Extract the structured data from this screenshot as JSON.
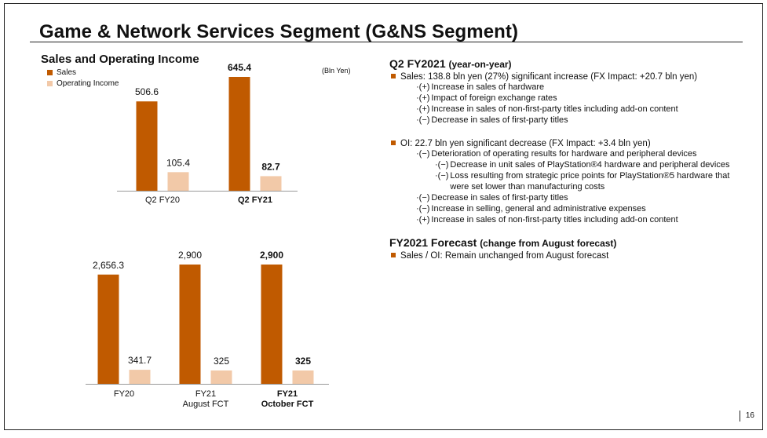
{
  "slide": {
    "title": "Game & Network Services Segment (G&NS Segment)",
    "chart_section_title": "Sales and Operating Income",
    "unit_label": "(Bln Yen)",
    "page_number": "16"
  },
  "colors": {
    "sales": "#c05a00",
    "operating_income": "#f2c9a8"
  },
  "chart_data": [
    {
      "type": "bar",
      "categories": [
        "Q2 FY20",
        "Q2 FY21"
      ],
      "categories_bold": [
        false,
        true
      ],
      "series": [
        {
          "name": "Sales",
          "values": [
            506.6,
            645.4
          ],
          "labels": [
            "506.6",
            "645.4"
          ]
        },
        {
          "name": "Operating Income",
          "values": [
            105.4,
            82.7
          ],
          "labels": [
            "105.4",
            "82.7"
          ]
        }
      ],
      "legend": [
        "Sales",
        "Operating Income"
      ],
      "legend_position": "top-left",
      "ylim": [
        0,
        800
      ],
      "grid": false
    },
    {
      "type": "bar",
      "categories": [
        [
          "FY20"
        ],
        [
          "FY21",
          "August FCT"
        ],
        [
          "FY21",
          "October FCT"
        ]
      ],
      "categories_bold": [
        false,
        false,
        true
      ],
      "series": [
        {
          "name": "Sales",
          "values": [
            2656.3,
            2900,
            2900
          ],
          "labels": [
            "2,656.3",
            "2,900",
            "2,900"
          ]
        },
        {
          "name": "Operating Income",
          "values": [
            341.7,
            325,
            325
          ],
          "labels": [
            "341.7",
            "325",
            "325"
          ]
        }
      ],
      "ylim": [
        0,
        3300
      ],
      "grid": false
    }
  ],
  "q2": {
    "heading": "Q2 FY2021",
    "heading_sub": "(year-on-year)",
    "sales_line": "Sales: 138.8 bln yen (27%) significant increase (FX Impact: +20.7 bln yen)",
    "sales_items": [
      {
        "marker": "·(+)",
        "text": "Increase in sales of hardware"
      },
      {
        "marker": "·(+)",
        "text": "Impact of foreign exchange rates"
      },
      {
        "marker": "·(+)",
        "text": "Increase in sales of non-first-party titles including add-on content"
      },
      {
        "marker": "·(−)",
        "text": "Decrease in sales of first-party titles"
      }
    ],
    "oi_line": "OI: 22.7 bln yen significant decrease (FX Impact: +3.4 bln yen)",
    "oi_items": [
      {
        "marker": "·(−)",
        "text": "Deterioration of operating results for hardware and peripheral devices",
        "level": 1
      },
      {
        "marker": "·(−)",
        "text": "Decrease in unit sales of PlayStation®4 hardware and peripheral devices",
        "level": 2
      },
      {
        "marker": "·(−)",
        "text": "Loss resulting from strategic price points for PlayStation®5  hardware that were set lower than manufacturing costs",
        "level": 2
      },
      {
        "marker": "·(−)",
        "text": "Decrease in sales of first-party titles",
        "level": 1
      },
      {
        "marker": "·(−)",
        "text": "Increase in selling, general and administrative expenses",
        "level": 1
      },
      {
        "marker": "·(+)",
        "text": "Increase in sales of non-first-party titles including add-on content",
        "level": 1
      }
    ]
  },
  "forecast": {
    "heading": "FY2021 Forecast",
    "heading_sub": "(change from August forecast)",
    "line": "Sales / OI: Remain unchanged from August forecast"
  }
}
